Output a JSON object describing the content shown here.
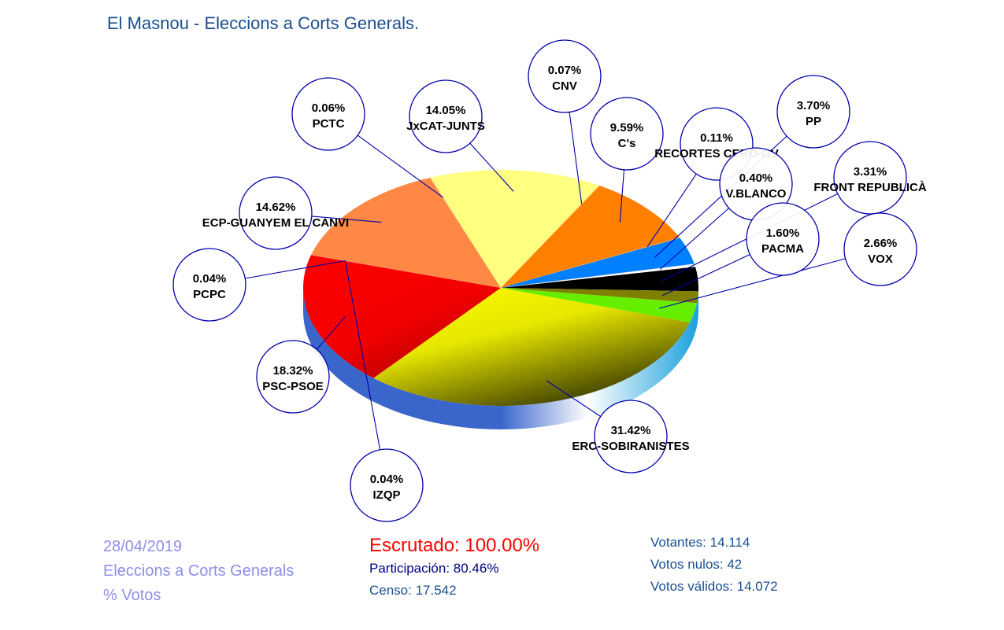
{
  "chart_data": {
    "type": "pie",
    "title": "El Masnou - Eleccions a Corts Generals.",
    "slices": [
      {
        "label": "ERC-SOBIRANISTES",
        "pct_label": "31.42%",
        "value": 31.42,
        "color": "#f4f400"
      },
      {
        "label": "PSC-PSOE",
        "pct_label": "18.32%",
        "value": 18.32,
        "color": "#ff0000"
      },
      {
        "label": "IZQP",
        "pct_label": "0.04%",
        "value": 0.04,
        "color": "#ff3030"
      },
      {
        "label": "PCPC",
        "pct_label": "0.04%",
        "value": 0.04,
        "color": "#ff5050"
      },
      {
        "label": "ECP-GUANYEM EL CANVI",
        "pct_label": "14.62%",
        "value": 14.62,
        "color": "#ff8844"
      },
      {
        "label": "PCTC",
        "pct_label": "0.06%",
        "value": 0.06,
        "color": "#ffd070"
      },
      {
        "label": "JxCAT-JUNTS",
        "pct_label": "14.05%",
        "value": 14.05,
        "color": "#ffff80"
      },
      {
        "label": "CNV",
        "pct_label": "0.07%",
        "value": 0.07,
        "color": "#ffb060"
      },
      {
        "label": "C's",
        "pct_label": "9.59%",
        "value": 9.59,
        "color": "#ff8000"
      },
      {
        "label": "RECORTES CERO-GV",
        "pct_label": "0.11%",
        "value": 0.11,
        "color": "#ff9933"
      },
      {
        "label": "PP",
        "pct_label": "3.70%",
        "value": 3.7,
        "color": "#0080ff"
      },
      {
        "label": "V.BLANCO",
        "pct_label": "0.40%",
        "value": 0.4,
        "color": "#ffffff"
      },
      {
        "label": "FRONT REPUBLICÀ",
        "pct_label": "3.31%",
        "value": 3.31,
        "color": "#000000"
      },
      {
        "label": "PACMA",
        "pct_label": "1.60%",
        "value": 1.6,
        "color": "#808000"
      },
      {
        "label": "VOX",
        "pct_label": "2.66%",
        "value": 2.66,
        "color": "#66ee00"
      }
    ]
  },
  "footer_left": {
    "date": "28/04/2019",
    "election": "Eleccions a Corts Generals",
    "metric": "% Votos"
  },
  "footer_mid": {
    "escrutado": "Escrutado: 100.00%",
    "participacion": "Participación: 80.46%",
    "censo": "Censo: 17.542"
  },
  "footer_right": {
    "votantes": "Votantes: 14.114",
    "nulos": "Votos nulos: 42",
    "validos": "Votos válidos: 14.072"
  },
  "colors": {
    "title": "#1a4f8f",
    "bubble_border": "#0000aa",
    "pie_side": "#3a66cc",
    "pie_side_right": "#2aaadd"
  }
}
